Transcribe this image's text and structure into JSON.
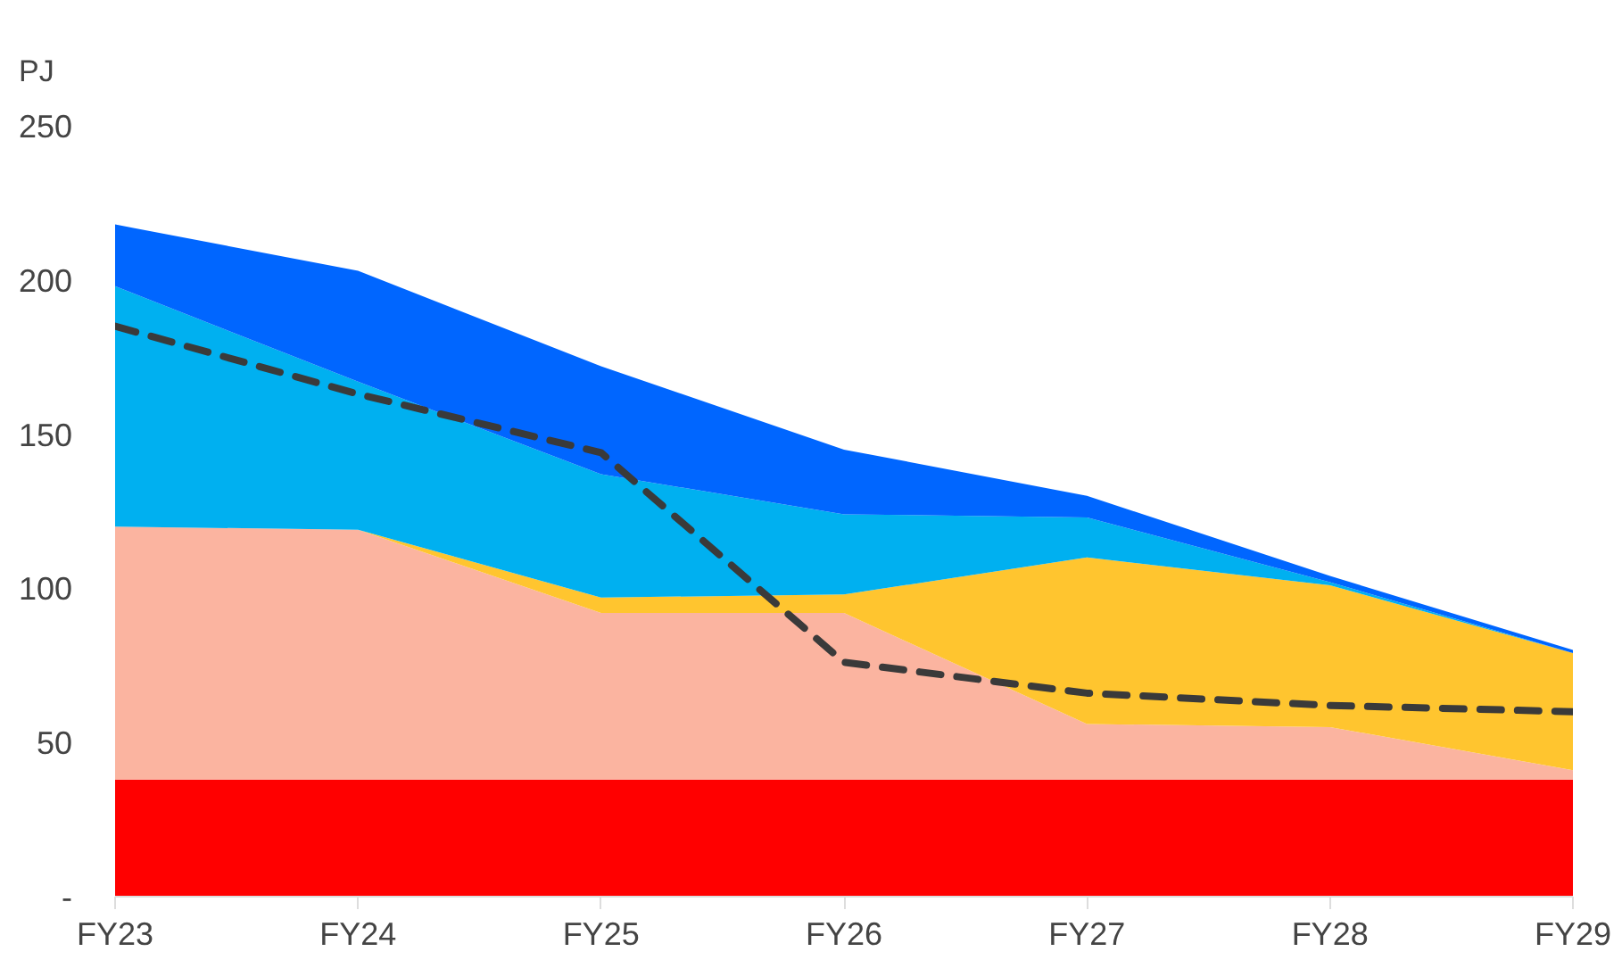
{
  "chart_data": {
    "type": "area",
    "stacked": true,
    "ylabel": "PJ",
    "grid": false,
    "categories": [
      "FY23",
      "FY24",
      "FY25",
      "FY26",
      "FY27",
      "FY28",
      "FY29"
    ],
    "ylim": [
      0,
      250
    ],
    "yticks": [
      {
        "value": 0,
        "label": "-"
      },
      50,
      100,
      150,
      200,
      250
    ],
    "series": [
      {
        "color": "#ff0000",
        "values": [
          38,
          38,
          38,
          38,
          38,
          38,
          38
        ]
      },
      {
        "color": "#fbb4a0",
        "values": [
          82,
          81,
          54,
          54,
          18,
          17,
          3
        ]
      },
      {
        "color": "#ffc52f",
        "values": [
          0,
          0,
          5,
          6,
          54,
          46,
          38
        ]
      },
      {
        "color": "#00b0f0",
        "values": [
          78,
          48,
          40,
          26,
          13,
          1,
          0
        ]
      },
      {
        "color": "#0066ff",
        "values": [
          20,
          36,
          35,
          21,
          7,
          2,
          1
        ]
      },
      {
        "type": "line",
        "color": "#3a3a3a",
        "line_style": "dashed",
        "values": [
          185,
          163,
          144,
          76,
          66,
          62,
          60
        ]
      }
    ]
  }
}
